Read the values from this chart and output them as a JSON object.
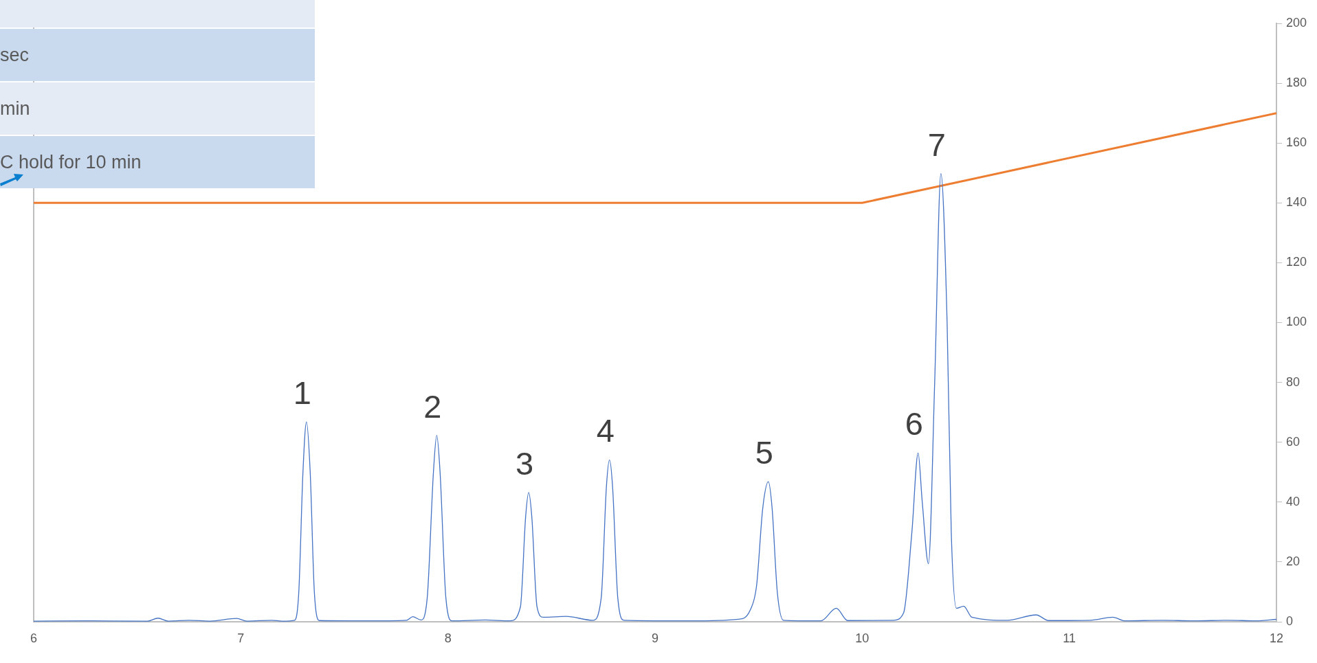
{
  "chart_data": {
    "type": "line",
    "xlim": [
      6,
      12
    ],
    "xticks": [
      6,
      7,
      8,
      9,
      10,
      11,
      12
    ],
    "ylim": [
      0,
      200
    ],
    "yticks": [
      0,
      20,
      40,
      60,
      80,
      100,
      120,
      140,
      160,
      180,
      200
    ],
    "grid": false,
    "legend": false,
    "marker": "none",
    "line_style": "solid",
    "series": [
      {
        "color": "#4472c4",
        "x": [
          6.0,
          6.25,
          6.55,
          6.6,
          6.65,
          6.75,
          6.85,
          6.98,
          7.03,
          7.15,
          7.2,
          7.26,
          7.28,
          7.3,
          7.317,
          7.335,
          7.355,
          7.38,
          7.6,
          7.8,
          7.83,
          7.87,
          7.9,
          7.93,
          7.946,
          7.962,
          7.99,
          8.02,
          8.18,
          8.3,
          8.35,
          8.375,
          8.39,
          8.405,
          8.43,
          8.46,
          8.57,
          8.7,
          8.74,
          8.765,
          8.78,
          8.795,
          8.82,
          8.85,
          9.2,
          9.42,
          9.46,
          9.49,
          9.52,
          9.547,
          9.565,
          9.59,
          9.62,
          9.8,
          9.875,
          9.93,
          10.15,
          10.2,
          10.24,
          10.27,
          10.29,
          10.32,
          10.35,
          10.38,
          10.41,
          10.43,
          10.455,
          10.49,
          10.53,
          10.7,
          10.84,
          10.9,
          11.1,
          11.21,
          11.27,
          11.45,
          11.6,
          11.77,
          11.9,
          12
        ],
        "values": [
          0.2,
          0.3,
          0.2,
          1.2,
          0.2,
          0.5,
          0.2,
          1.1,
          0.2,
          0.5,
          0.2,
          0.5,
          10,
          50,
          66.8,
          50,
          10,
          0.4,
          0.3,
          0.5,
          1.7,
          0.6,
          8,
          50,
          62.3,
          50,
          8,
          0.3,
          0.6,
          0.3,
          5,
          35,
          43.2,
          35,
          5,
          1.5,
          1.8,
          0.5,
          8,
          45,
          54.1,
          45,
          8,
          0.5,
          0.3,
          1,
          4,
          12,
          38,
          46.8,
          38,
          10,
          0.5,
          0.3,
          4.5,
          0.4,
          0.5,
          3,
          30,
          56.4,
          40,
          19.4,
          80,
          149.8,
          100,
          30,
          4.5,
          5.2,
          1.5,
          0.5,
          2.3,
          0.4,
          0.5,
          1.5,
          0.3,
          0.5,
          0.3,
          0.5,
          0.3,
          0.8
        ]
      },
      {
        "color": "#ed7d31",
        "x": [
          6,
          10,
          12
        ],
        "values": [
          140,
          140,
          170
        ]
      }
    ],
    "annotations": [
      "sec",
      "min",
      "C hold for 10 min",
      {
        "text": "1",
        "x": 7.317,
        "y": 66.8
      },
      {
        "text": "2",
        "x": 7.946,
        "y": 62.3
      },
      {
        "text": "3",
        "x": 8.39,
        "y": 43.2
      },
      {
        "text": "4",
        "x": 8.78,
        "y": 54.1
      },
      {
        "text": "5",
        "x": 9.547,
        "y": 46.8
      },
      {
        "text": "6",
        "x": 10.27,
        "y": 56.4
      },
      {
        "text": "7",
        "x": 10.38,
        "y": 149.8
      }
    ]
  }
}
